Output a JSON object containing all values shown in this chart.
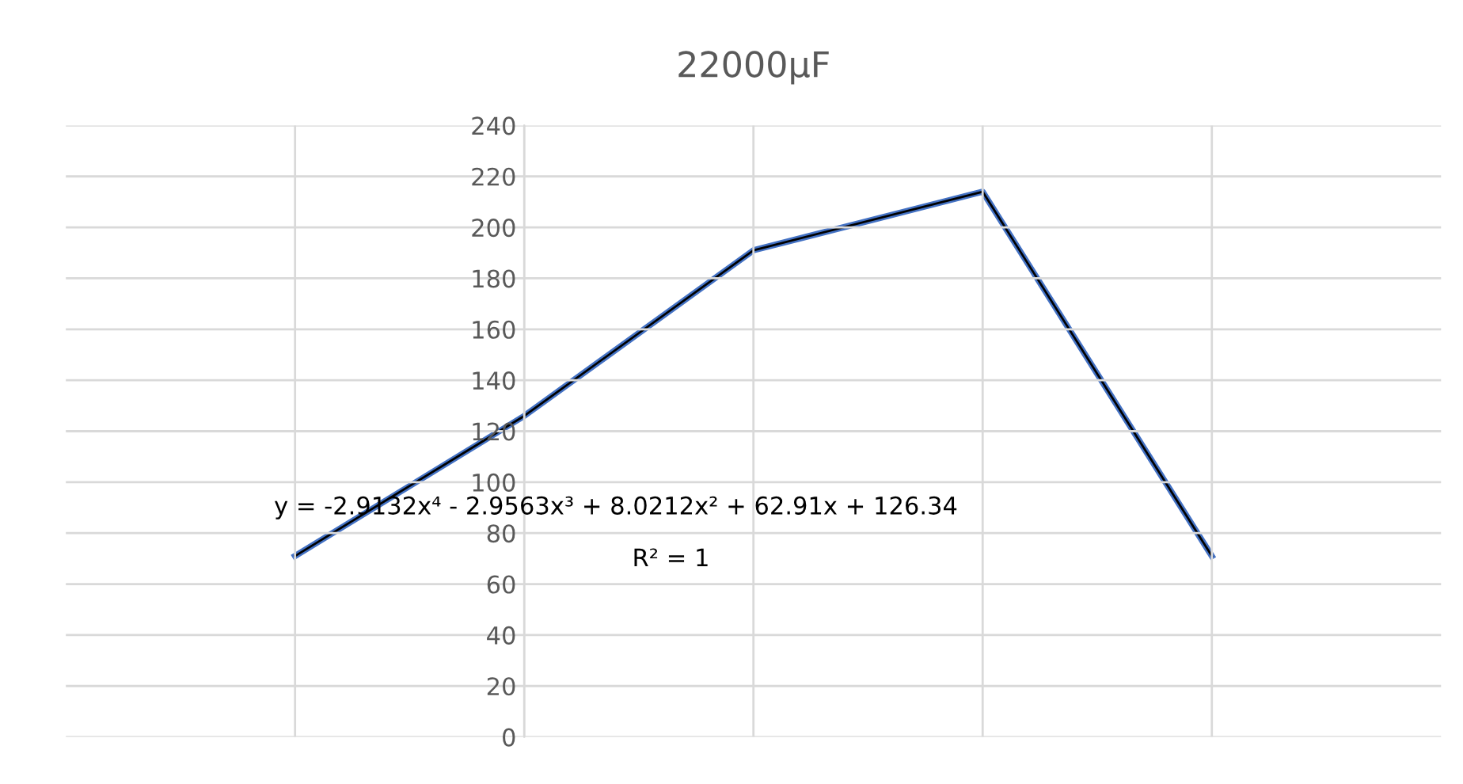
{
  "chart_data": {
    "type": "line",
    "title": "22000µF",
    "categories": [
      null,
      null,
      null,
      null,
      null
    ],
    "series": [
      {
        "color": "#000000",
        "values": [
          71,
          126,
          191,
          214,
          71
        ]
      },
      {
        "color": "#4472c4",
        "values": [
          71,
          126,
          191,
          214,
          71
        ]
      }
    ],
    "ylim": [
      0,
      240
    ],
    "yticks": [
      0,
      20,
      40,
      60,
      80,
      100,
      120,
      140,
      160,
      180,
      200,
      220,
      240
    ],
    "grid": true,
    "annotations": [
      "y = -2.9132x⁴ - 2.9563x³ + 8.0212x² + 62.91x + 126.34",
      "R² = 1"
    ]
  }
}
